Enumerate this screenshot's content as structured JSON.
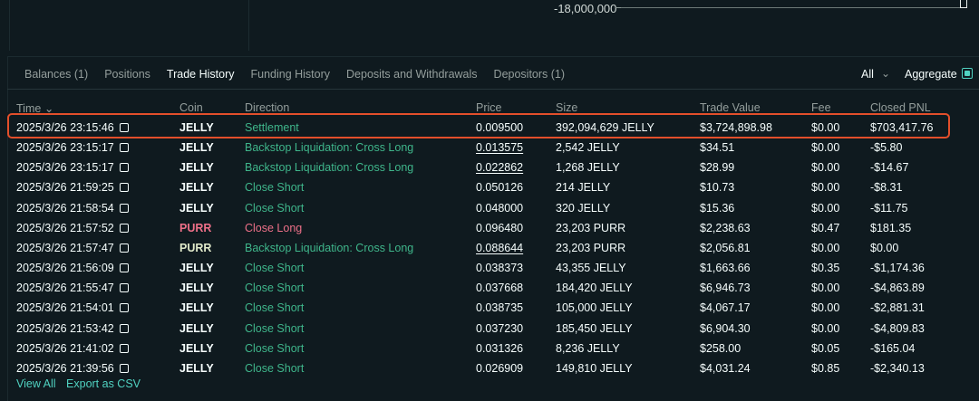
{
  "chart": {
    "axis_label": "-18,000,000"
  },
  "tabs": [
    {
      "label": "Balances (1)"
    },
    {
      "label": "Positions"
    },
    {
      "label": "Trade History"
    },
    {
      "label": "Funding History"
    },
    {
      "label": "Deposits and Withdrawals"
    },
    {
      "label": "Depositors (1)"
    }
  ],
  "filters": {
    "all_label": "All",
    "aggregate_label": "Aggregate",
    "aggregate_checked": true
  },
  "columns": {
    "time": "Time",
    "coin": "Coin",
    "direction": "Direction",
    "price": "Price",
    "size": "Size",
    "trade_value": "Trade Value",
    "fee": "Fee",
    "closed_pnl": "Closed PNL"
  },
  "rows": [
    {
      "time": "2025/3/26 23:15:46",
      "coin": "JELLY",
      "direction": "Settlement",
      "price": "0.009500",
      "size": "392,094,629 JELLY",
      "value": "$3,724,898.98",
      "fee": "$0.00",
      "pnl": "$703,417.76"
    },
    {
      "time": "2025/3/26 23:15:17",
      "coin": "JELLY",
      "direction": "Backstop Liquidation: Cross Long",
      "price": "0.013575",
      "size": "2,542 JELLY",
      "value": "$34.51",
      "fee": "$0.00",
      "pnl": "-$5.80"
    },
    {
      "time": "2025/3/26 23:15:17",
      "coin": "JELLY",
      "direction": "Backstop Liquidation: Cross Long",
      "price": "0.022862",
      "size": "1,268 JELLY",
      "value": "$28.99",
      "fee": "$0.00",
      "pnl": "-$14.67"
    },
    {
      "time": "2025/3/26 21:59:25",
      "coin": "JELLY",
      "direction": "Close Short",
      "price": "0.050126",
      "size": "214 JELLY",
      "value": "$10.73",
      "fee": "$0.00",
      "pnl": "-$8.31"
    },
    {
      "time": "2025/3/26 21:58:54",
      "coin": "JELLY",
      "direction": "Close Short",
      "price": "0.048000",
      "size": "320 JELLY",
      "value": "$15.36",
      "fee": "$0.00",
      "pnl": "-$11.75"
    },
    {
      "time": "2025/3/26 21:57:52",
      "coin": "PURR",
      "direction": "Close Long",
      "price": "0.096480",
      "size": "23,203 PURR",
      "value": "$2,238.63",
      "fee": "$0.47",
      "pnl": "$181.35"
    },
    {
      "time": "2025/3/26 21:57:47",
      "coin": "PURR",
      "direction": "Backstop Liquidation: Cross Long",
      "price": "0.088644",
      "size": "23,203 PURR",
      "value": "$2,056.81",
      "fee": "$0.00",
      "pnl": "$0.00"
    },
    {
      "time": "2025/3/26 21:56:09",
      "coin": "JELLY",
      "direction": "Close Short",
      "price": "0.038373",
      "size": "43,355 JELLY",
      "value": "$1,663.66",
      "fee": "$0.35",
      "pnl": "-$1,174.36"
    },
    {
      "time": "2025/3/26 21:55:47",
      "coin": "JELLY",
      "direction": "Close Short",
      "price": "0.037668",
      "size": "184,420 JELLY",
      "value": "$6,946.73",
      "fee": "$0.00",
      "pnl": "-$4,863.89"
    },
    {
      "time": "2025/3/26 21:54:01",
      "coin": "JELLY",
      "direction": "Close Short",
      "price": "0.038735",
      "size": "105,000 JELLY",
      "value": "$4,067.17",
      "fee": "$0.00",
      "pnl": "-$2,881.31"
    },
    {
      "time": "2025/3/26 21:53:42",
      "coin": "JELLY",
      "direction": "Close Short",
      "price": "0.037230",
      "size": "185,450 JELLY",
      "value": "$6,904.30",
      "fee": "$0.00",
      "pnl": "-$4,809.83"
    },
    {
      "time": "2025/3/26 21:41:02",
      "coin": "JELLY",
      "direction": "Close Short",
      "price": "0.031326",
      "size": "8,236 JELLY",
      "value": "$258.00",
      "fee": "$0.05",
      "pnl": "-$165.04"
    },
    {
      "time": "2025/3/26 21:39:56",
      "coin": "JELLY",
      "direction": "Close Short",
      "price": "0.026909",
      "size": "149,810 JELLY",
      "value": "$4,031.24",
      "fee": "$0.85",
      "pnl": "-$2,340.13"
    }
  ],
  "footer": {
    "view_all": "View All",
    "export": "Export as CSV"
  },
  "colors": {
    "accent": "#50d2c1",
    "green": "#3fb68b",
    "red": "#ed7088",
    "highlight": "#e34f2b"
  }
}
